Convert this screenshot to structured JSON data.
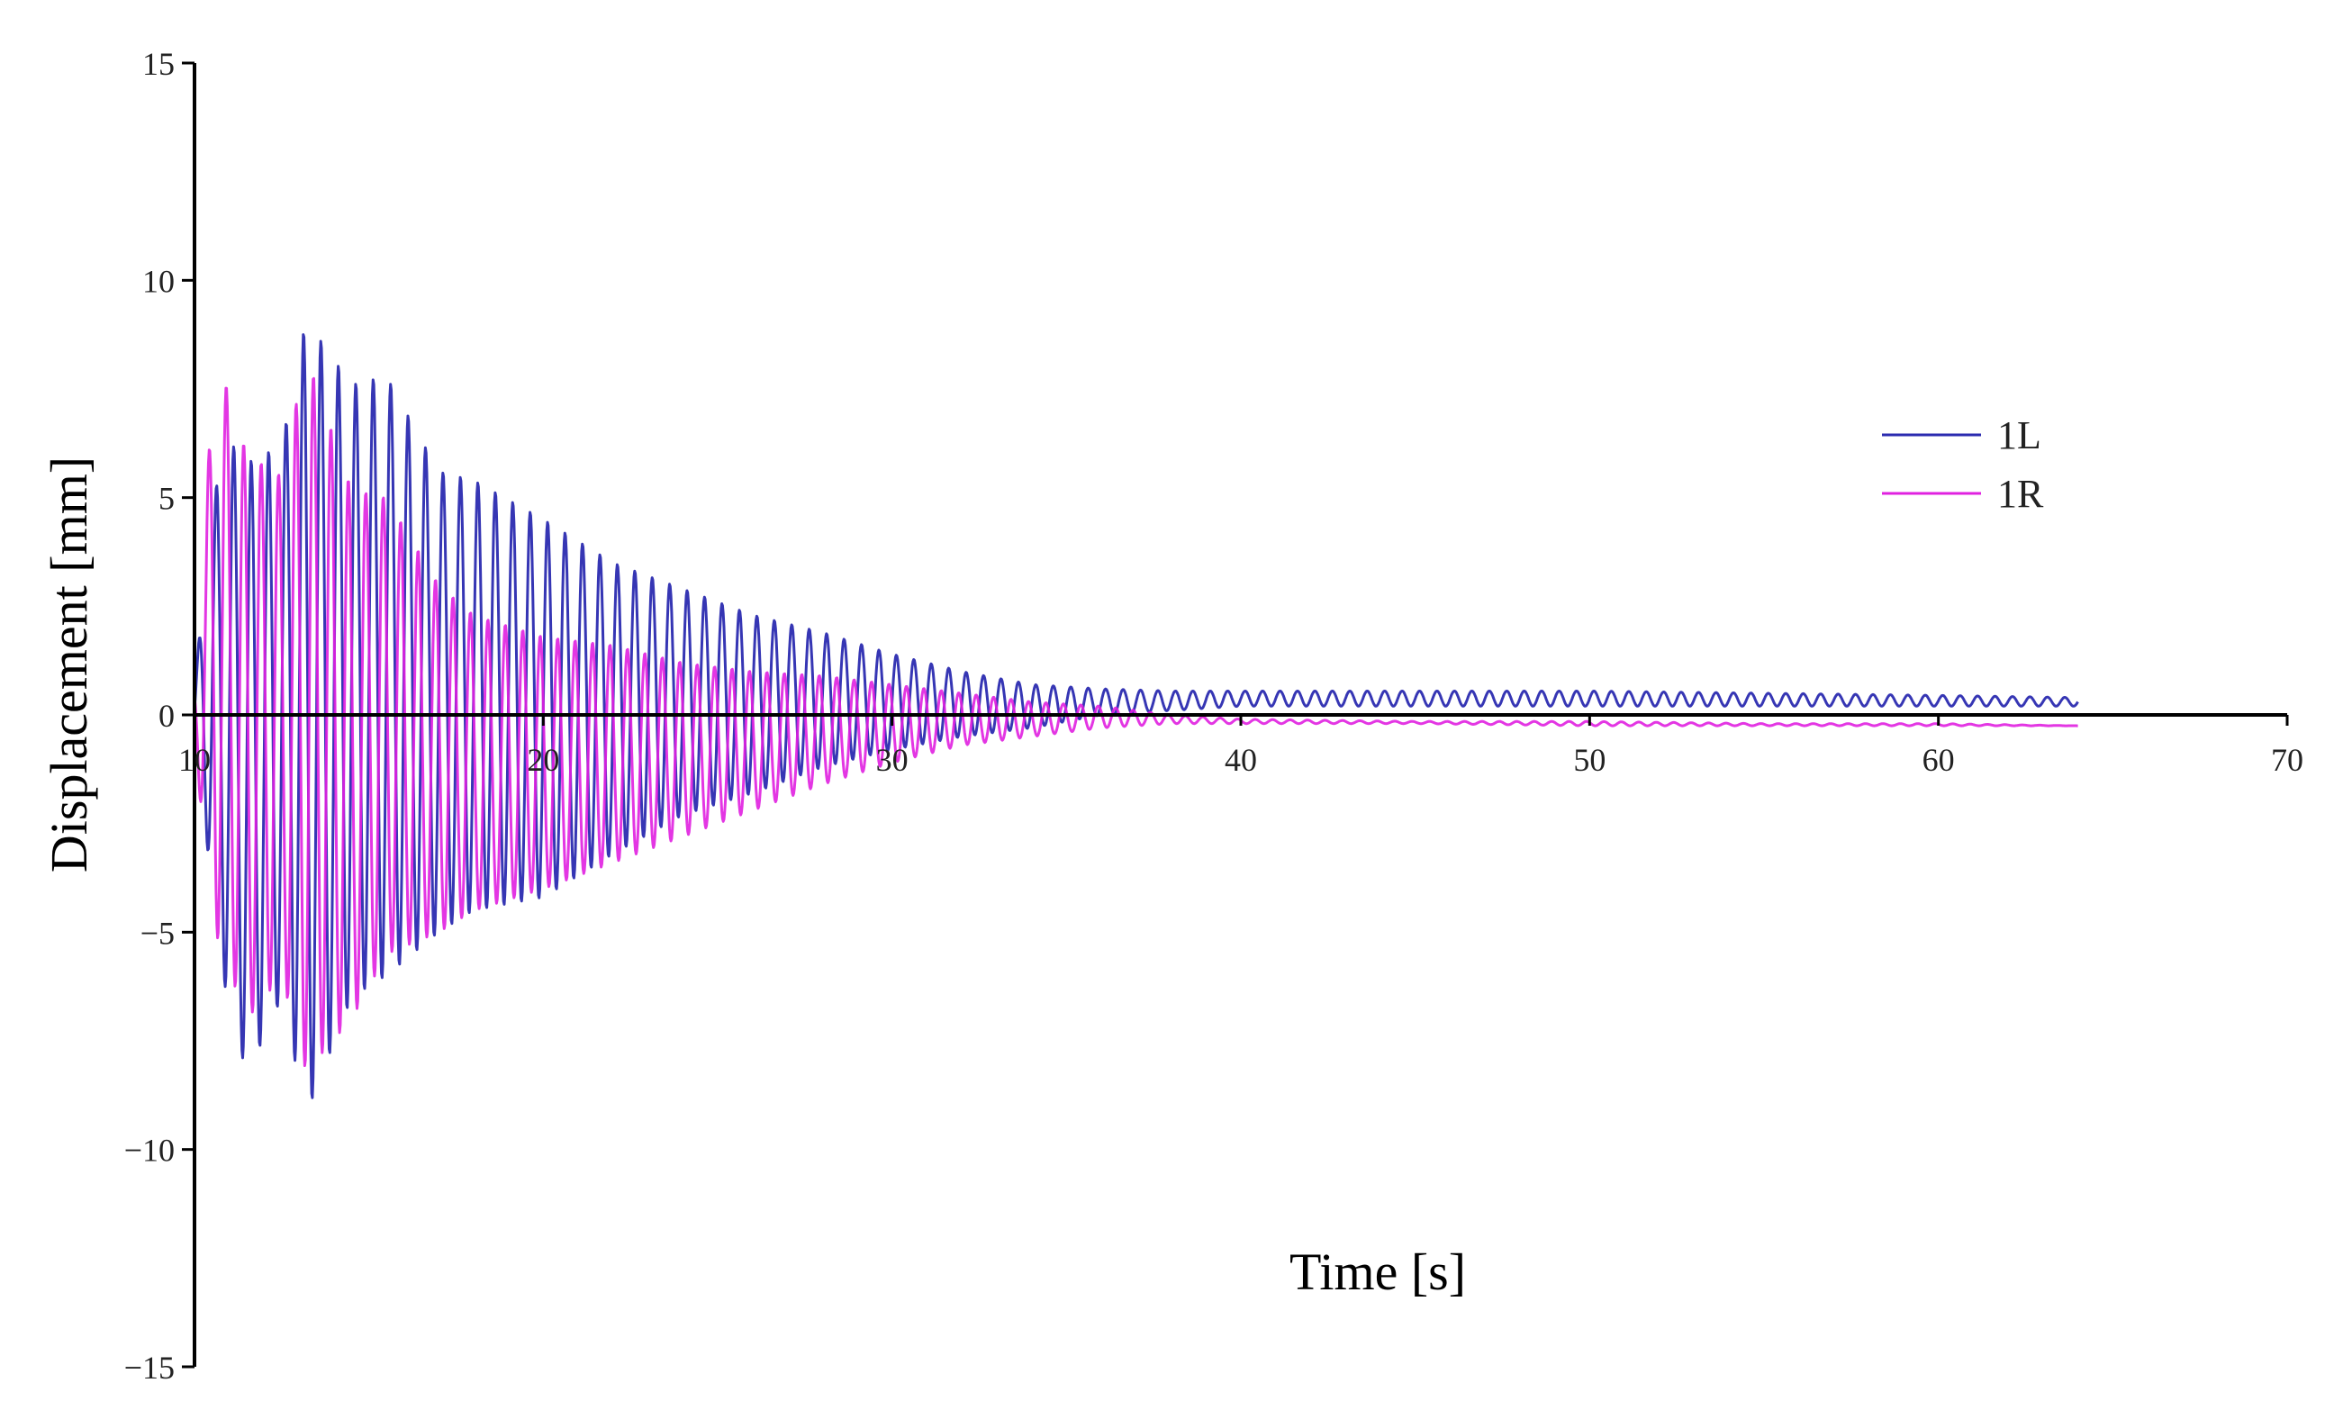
{
  "chart_data": {
    "type": "line",
    "xlabel": "Time [s]",
    "ylabel": "Displacement [mm]",
    "xlim": [
      10,
      70
    ],
    "ylim": [
      -15,
      15
    ],
    "xticks": [
      10,
      20,
      30,
      40,
      50,
      60,
      70
    ],
    "yticks": [
      15,
      10,
      5,
      0,
      -5,
      -10,
      -15
    ],
    "ytick_labels": [
      "15",
      "10",
      "5",
      "0",
      "−5",
      "−10",
      "−15"
    ],
    "grid": false,
    "legend": {
      "position": "right",
      "entries": [
        "1L",
        "1R"
      ]
    },
    "x_range_data": [
      10,
      64
    ],
    "oscillation_period_s": 0.5,
    "series": [
      {
        "name": "1L",
        "color": "#2B2BB0",
        "x": [
          10,
          10.8,
          11.5,
          12.5,
          13.2,
          14.5,
          15.5,
          17,
          18,
          20,
          22,
          24,
          26,
          28,
          30,
          32,
          34,
          36,
          38,
          40,
          45,
          50,
          55,
          60,
          64
        ],
        "upper": [
          0.8,
          6.5,
          5.8,
          6.2,
          9.1,
          7.6,
          7.8,
          5.6,
          5.4,
          4.5,
          3.5,
          2.9,
          2.3,
          1.9,
          1.4,
          1.0,
          0.7,
          0.6,
          0.55,
          0.55,
          0.55,
          0.55,
          0.5,
          0.45,
          0.4
        ],
        "lower": [
          -0.5,
          -6.0,
          -8.3,
          -6.5,
          -9.2,
          -6.5,
          -6.0,
          -5.0,
          -4.5,
          -4.2,
          -3.2,
          -2.3,
          -1.8,
          -1.2,
          -0.8,
          -0.5,
          -0.3,
          0.0,
          0.1,
          0.2,
          0.2,
          0.2,
          0.2,
          0.2,
          0.2
        ]
      },
      {
        "name": "1R",
        "color": "#E020E0",
        "x": [
          10,
          10.6,
          11.5,
          12.5,
          13.2,
          14.5,
          15.5,
          17,
          18,
          20,
          22,
          24,
          26,
          28,
          30,
          32,
          34,
          36,
          38,
          40,
          45,
          50,
          55,
          60,
          64
        ],
        "upper": [
          0.8,
          8.4,
          6.0,
          5.5,
          8.3,
          5.2,
          5.0,
          3.0,
          2.3,
          1.8,
          1.6,
          1.2,
          1.0,
          0.9,
          0.7,
          0.5,
          0.3,
          0.2,
          0.0,
          -0.1,
          -0.15,
          -0.15,
          -0.2,
          -0.2,
          -0.25
        ],
        "lower": [
          -0.8,
          -5.0,
          -7.0,
          -6.0,
          -8.2,
          -7.0,
          -5.5,
          -5.0,
          -4.5,
          -4.0,
          -3.4,
          -2.8,
          -2.2,
          -1.6,
          -1.1,
          -0.7,
          -0.5,
          -0.3,
          -0.2,
          -0.2,
          -0.2,
          -0.25,
          -0.25,
          -0.25,
          -0.25
        ]
      }
    ]
  }
}
